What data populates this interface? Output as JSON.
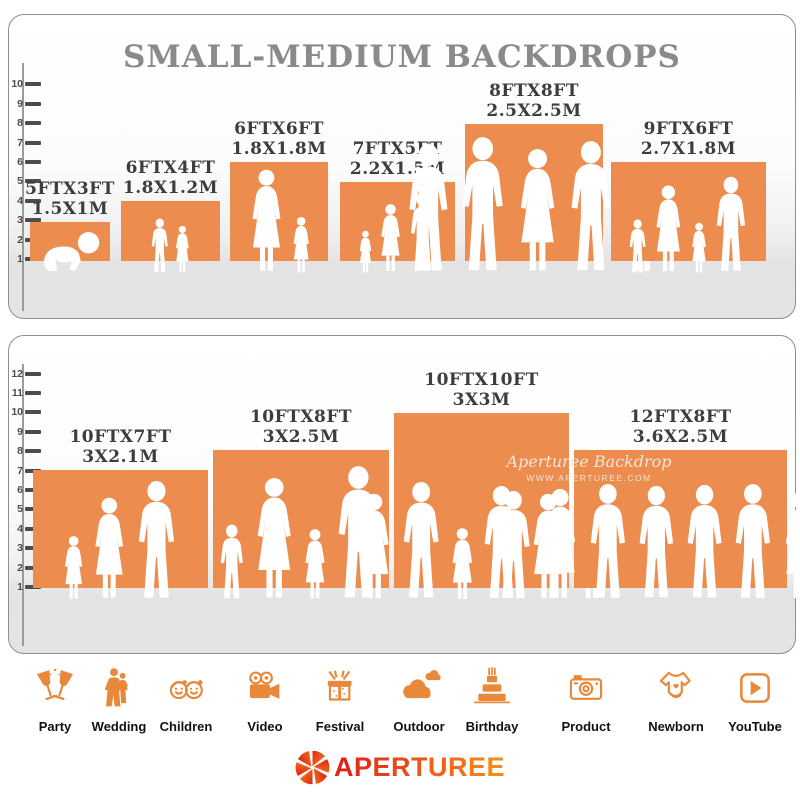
{
  "title": "SMALL-MEDIUM BACKDROPS",
  "colors": {
    "backdrop_orange": "#EC8C4E",
    "icon_orange": "#E8883A",
    "title_gray": "#8A8A8A",
    "label_dark": "#3D3D3D",
    "logo_red": "#E02217",
    "logo_orange": "#F6891B"
  },
  "top_panel": {
    "ruler_max": 10,
    "backdrops": [
      {
        "size_ft": "5FTX3FT",
        "size_m": "1.5X1M",
        "figures": "crawling-baby"
      },
      {
        "size_ft": "6FTX4FT",
        "size_m": "1.8X1.2M",
        "figures": "two-children"
      },
      {
        "size_ft": "6FTX6FT",
        "size_m": "1.8X1.8M",
        "figures": "mother-and-child"
      },
      {
        "size_ft": "7FTX5FT",
        "size_m": "2.2X1.5M",
        "figures": "family-of-three"
      },
      {
        "size_ft": "8FTX8FT",
        "size_m": "2.5X2.5M",
        "figures": "group-of-five"
      },
      {
        "size_ft": "9FTX6FT",
        "size_m": "2.7X1.8M",
        "figures": "family-of-four"
      }
    ]
  },
  "bottom_panel": {
    "ruler_max": 12,
    "backdrops": [
      {
        "size_ft": "10FTX7FT",
        "size_m": "3X2.1M",
        "figures": "family-of-three"
      },
      {
        "size_ft": "10FTX8FT",
        "size_m": "3X2.5M",
        "figures": "family-of-four"
      },
      {
        "size_ft": "10FTX10FT",
        "size_m": "3X3M",
        "figures": "group-of-six"
      },
      {
        "size_ft": "12FTX8FT",
        "size_m": "3.6X2.5M",
        "figures": "group-of-eight"
      }
    ],
    "watermark": {
      "line1": "Aperturee Backdrop",
      "line2": "WWW.APERTUREE.COM"
    }
  },
  "categories": [
    {
      "label": "Party",
      "icon": "party-icon"
    },
    {
      "label": "Wedding",
      "icon": "wedding-icon"
    },
    {
      "label": "Children",
      "icon": "children-icon"
    },
    {
      "label": "Video",
      "icon": "video-icon"
    },
    {
      "label": "Festival",
      "icon": "festival-icon"
    },
    {
      "label": "Outdoor",
      "icon": "outdoor-icon"
    },
    {
      "label": "Birthday",
      "icon": "birthday-icon"
    },
    {
      "label": "Product",
      "icon": "product-icon"
    },
    {
      "label": "Newborn",
      "icon": "newborn-icon"
    },
    {
      "label": "YouTube",
      "icon": "youtube-icon"
    }
  ],
  "logo": {
    "text": "APERTUREE"
  }
}
